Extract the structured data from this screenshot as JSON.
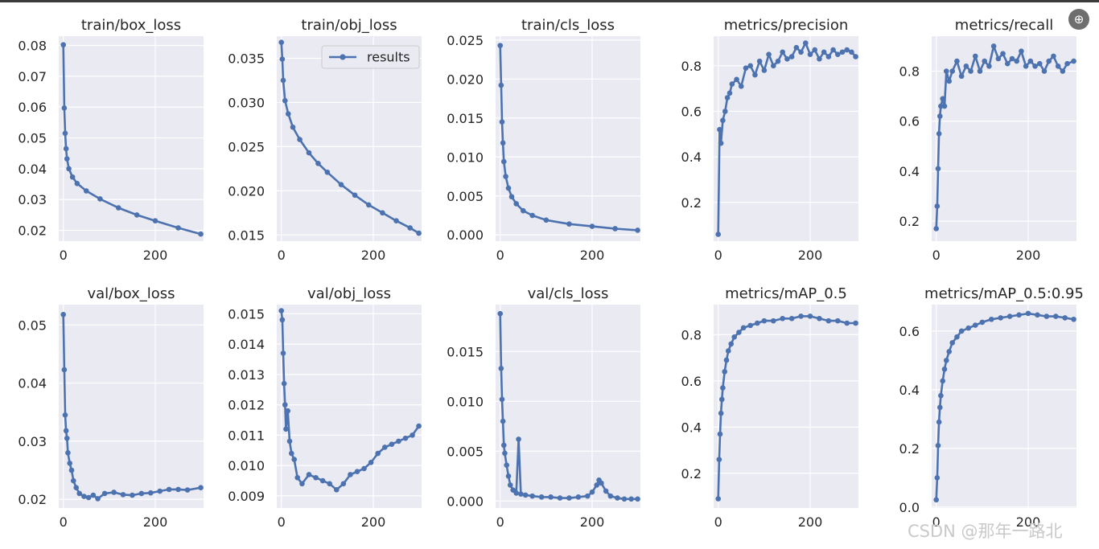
{
  "colors": {
    "panel_bg": "#eaeaf2",
    "grid": "#ffffff",
    "series": "#4c72b0",
    "text": "#262626"
  },
  "toolbar": {
    "zoom_icon": "magnifier-icon",
    "zoom_glyph": "⊕"
  },
  "watermark": "CSDN @那年一路北",
  "chart_data": [
    {
      "type": "line",
      "title": "train/box_loss",
      "xlim": [
        -10,
        305
      ],
      "ylim": [
        0.0165,
        0.083
      ],
      "xticks": [
        0,
        200
      ],
      "yticks": [
        0.02,
        0.03,
        0.04,
        0.05,
        0.06,
        0.07,
        0.08
      ],
      "ytick_labels": [
        "0.02",
        "0.03",
        "0.04",
        "0.05",
        "0.06",
        "0.07",
        "0.08"
      ],
      "series": [
        {
          "name": "results",
          "x": [
            0,
            2,
            4,
            6,
            8,
            12,
            20,
            30,
            50,
            80,
            120,
            160,
            200,
            250,
            299
          ],
          "y": [
            0.0802,
            0.0597,
            0.0515,
            0.0465,
            0.0432,
            0.04,
            0.0373,
            0.0352,
            0.0328,
            0.0302,
            0.0273,
            0.025,
            0.0231,
            0.0208,
            0.0188
          ]
        }
      ]
    },
    {
      "type": "line",
      "title": "train/obj_loss",
      "xlim": [
        -10,
        305
      ],
      "ylim": [
        0.0143,
        0.0375
      ],
      "xticks": [
        0,
        200
      ],
      "yticks": [
        0.015,
        0.02,
        0.025,
        0.03,
        0.035
      ],
      "ytick_labels": [
        "0.015",
        "0.020",
        "0.025",
        "0.030",
        "0.035"
      ],
      "legend": {
        "label": "results",
        "position": "top-right"
      },
      "series": [
        {
          "name": "results",
          "x": [
            0,
            2,
            4,
            8,
            15,
            25,
            40,
            60,
            80,
            100,
            130,
            160,
            190,
            220,
            250,
            280,
            299
          ],
          "y": [
            0.0368,
            0.0349,
            0.0325,
            0.0302,
            0.0287,
            0.0272,
            0.0258,
            0.0243,
            0.0231,
            0.0221,
            0.0207,
            0.0195,
            0.0184,
            0.0175,
            0.0166,
            0.0158,
            0.0152
          ]
        }
      ]
    },
    {
      "type": "line",
      "title": "train/cls_loss",
      "xlim": [
        -10,
        305
      ],
      "ylim": [
        -0.0008,
        0.0255
      ],
      "xticks": [
        0,
        200
      ],
      "yticks": [
        0,
        0.005,
        0.01,
        0.015,
        0.02,
        0.025
      ],
      "ytick_labels": [
        "0.000",
        "0.005",
        "0.010",
        "0.015",
        "0.020",
        "0.025"
      ],
      "series": [
        {
          "name": "results",
          "x": [
            0,
            2,
            4,
            6,
            8,
            12,
            18,
            25,
            35,
            50,
            70,
            100,
            150,
            200,
            250,
            299
          ],
          "y": [
            0.0243,
            0.0192,
            0.0145,
            0.0118,
            0.0094,
            0.0075,
            0.006,
            0.0049,
            0.004,
            0.0031,
            0.0025,
            0.0019,
            0.0014,
            0.0011,
            0.0008,
            0.0006
          ]
        }
      ]
    },
    {
      "type": "line",
      "title": "metrics/precision",
      "xlim": [
        -10,
        305
      ],
      "ylim": [
        0.03,
        0.93
      ],
      "xticks": [
        0,
        200
      ],
      "yticks": [
        0.2,
        0.4,
        0.6,
        0.8
      ],
      "ytick_labels": [
        "0.2",
        "0.4",
        "0.6",
        "0.8"
      ],
      "series": [
        {
          "name": "results",
          "x": [
            0,
            3,
            6,
            10,
            15,
            20,
            25,
            30,
            40,
            50,
            60,
            70,
            80,
            90,
            100,
            110,
            120,
            130,
            140,
            150,
            160,
            170,
            180,
            190,
            200,
            210,
            220,
            230,
            240,
            250,
            260,
            270,
            280,
            290,
            299
          ],
          "y": [
            0.06,
            0.52,
            0.46,
            0.56,
            0.6,
            0.66,
            0.68,
            0.72,
            0.74,
            0.71,
            0.79,
            0.8,
            0.76,
            0.82,
            0.78,
            0.85,
            0.8,
            0.82,
            0.86,
            0.83,
            0.84,
            0.88,
            0.86,
            0.9,
            0.85,
            0.87,
            0.83,
            0.86,
            0.84,
            0.87,
            0.85,
            0.86,
            0.87,
            0.86,
            0.84
          ]
        }
      ]
    },
    {
      "type": "line",
      "title": "metrics/recall",
      "xlim": [
        -10,
        305
      ],
      "ylim": [
        0.12,
        0.94
      ],
      "xticks": [
        0,
        200
      ],
      "yticks": [
        0.2,
        0.4,
        0.6,
        0.8
      ],
      "ytick_labels": [
        "0.2",
        "0.4",
        "0.6",
        "0.8"
      ],
      "series": [
        {
          "name": "results",
          "x": [
            0,
            2,
            4,
            6,
            8,
            10,
            14,
            18,
            22,
            28,
            35,
            45,
            55,
            65,
            75,
            85,
            95,
            105,
            115,
            125,
            135,
            145,
            155,
            165,
            175,
            185,
            195,
            205,
            215,
            225,
            235,
            245,
            255,
            265,
            275,
            285,
            299
          ],
          "y": [
            0.17,
            0.26,
            0.41,
            0.55,
            0.62,
            0.66,
            0.69,
            0.66,
            0.8,
            0.76,
            0.8,
            0.84,
            0.78,
            0.82,
            0.8,
            0.86,
            0.8,
            0.84,
            0.82,
            0.9,
            0.85,
            0.87,
            0.83,
            0.85,
            0.84,
            0.88,
            0.82,
            0.84,
            0.82,
            0.83,
            0.8,
            0.84,
            0.86,
            0.82,
            0.8,
            0.83,
            0.84
          ]
        }
      ]
    },
    {
      "type": "line",
      "title": "val/box_loss",
      "xlim": [
        -10,
        305
      ],
      "ylim": [
        0.0185,
        0.0535
      ],
      "xticks": [
        0,
        200
      ],
      "yticks": [
        0.02,
        0.03,
        0.04,
        0.05
      ],
      "ytick_labels": [
        "0.02",
        "0.03",
        "0.04",
        "0.05"
      ],
      "series": [
        {
          "name": "results",
          "x": [
            0,
            2,
            4,
            6,
            8,
            10,
            14,
            18,
            22,
            28,
            35,
            45,
            55,
            65,
            75,
            90,
            110,
            130,
            150,
            170,
            190,
            210,
            230,
            250,
            270,
            299
          ],
          "y": [
            0.0518,
            0.0423,
            0.0345,
            0.0318,
            0.0305,
            0.028,
            0.0262,
            0.025,
            0.0232,
            0.022,
            0.021,
            0.0205,
            0.0203,
            0.0207,
            0.0201,
            0.021,
            0.0212,
            0.0208,
            0.0207,
            0.021,
            0.0211,
            0.0214,
            0.0217,
            0.0217,
            0.0216,
            0.022
          ]
        }
      ]
    },
    {
      "type": "line",
      "title": "val/obj_loss",
      "xlim": [
        -10,
        305
      ],
      "ylim": [
        0.0086,
        0.0153
      ],
      "xticks": [
        0,
        200
      ],
      "yticks": [
        0.009,
        0.01,
        0.011,
        0.012,
        0.013,
        0.014,
        0.015
      ],
      "ytick_labels": [
        "0.009",
        "0.010",
        "0.011",
        "0.012",
        "0.013",
        "0.014",
        "0.015"
      ],
      "series": [
        {
          "name": "results",
          "x": [
            0,
            2,
            4,
            6,
            8,
            10,
            14,
            18,
            22,
            28,
            35,
            45,
            60,
            75,
            90,
            105,
            120,
            135,
            150,
            165,
            180,
            195,
            210,
            225,
            240,
            255,
            270,
            285,
            299
          ],
          "y": [
            0.0151,
            0.0148,
            0.0137,
            0.0127,
            0.012,
            0.0112,
            0.0118,
            0.0108,
            0.0104,
            0.0102,
            0.0096,
            0.0094,
            0.0097,
            0.0096,
            0.0095,
            0.0094,
            0.0092,
            0.0094,
            0.0097,
            0.0098,
            0.0099,
            0.0101,
            0.0104,
            0.0106,
            0.0107,
            0.0108,
            0.0109,
            0.011,
            0.0113
          ]
        }
      ]
    },
    {
      "type": "line",
      "title": "val/cls_loss",
      "xlim": [
        -10,
        305
      ],
      "ylim": [
        -0.0007,
        0.0197
      ],
      "xticks": [
        0,
        200
      ],
      "yticks": [
        0,
        0.005,
        0.01,
        0.015
      ],
      "ytick_labels": [
        "0.000",
        "0.005",
        "0.010",
        "0.015"
      ],
      "series": [
        {
          "name": "results",
          "x": [
            0,
            2,
            4,
            6,
            8,
            10,
            14,
            18,
            22,
            28,
            35,
            40,
            45,
            55,
            70,
            90,
            110,
            130,
            150,
            170,
            190,
            200,
            210,
            215,
            220,
            230,
            240,
            255,
            270,
            285,
            299
          ],
          "y": [
            0.0188,
            0.0133,
            0.0102,
            0.008,
            0.0056,
            0.0048,
            0.0036,
            0.0025,
            0.0016,
            0.0011,
            0.0008,
            0.0062,
            0.0007,
            0.0006,
            0.0005,
            0.0004,
            0.0004,
            0.0003,
            0.0003,
            0.0004,
            0.0005,
            0.0009,
            0.0016,
            0.0021,
            0.0018,
            0.001,
            0.0005,
            0.0003,
            0.0002,
            0.0002,
            0.0002
          ]
        }
      ]
    },
    {
      "type": "line",
      "title": "metrics/mAP_0.5",
      "xlim": [
        -10,
        305
      ],
      "ylim": [
        0.05,
        0.93
      ],
      "xticks": [
        0,
        200
      ],
      "yticks": [
        0.2,
        0.4,
        0.6,
        0.8
      ],
      "ytick_labels": [
        "0.2",
        "0.4",
        "0.6",
        "0.8"
      ],
      "series": [
        {
          "name": "results",
          "x": [
            0,
            2,
            4,
            6,
            8,
            10,
            14,
            18,
            22,
            28,
            35,
            45,
            55,
            70,
            85,
            100,
            120,
            140,
            160,
            180,
            200,
            220,
            240,
            260,
            280,
            299
          ],
          "y": [
            0.09,
            0.26,
            0.37,
            0.46,
            0.52,
            0.57,
            0.64,
            0.69,
            0.73,
            0.76,
            0.79,
            0.81,
            0.83,
            0.84,
            0.85,
            0.86,
            0.86,
            0.87,
            0.87,
            0.88,
            0.88,
            0.87,
            0.86,
            0.86,
            0.85,
            0.85
          ]
        }
      ]
    },
    {
      "type": "line",
      "title": "metrics/mAP_0.5:0.95",
      "xlim": [
        -10,
        305
      ],
      "ylim": [
        -0.003,
        0.69
      ],
      "xticks": [
        0,
        200
      ],
      "yticks": [
        0,
        0.2,
        0.4,
        0.6
      ],
      "ytick_labels": [
        "0.0",
        "0.2",
        "0.4",
        "0.6"
      ],
      "series": [
        {
          "name": "results",
          "x": [
            0,
            2,
            4,
            6,
            8,
            10,
            14,
            18,
            22,
            28,
            35,
            45,
            55,
            70,
            85,
            100,
            120,
            140,
            160,
            180,
            200,
            220,
            240,
            260,
            280,
            299
          ],
          "y": [
            0.025,
            0.1,
            0.21,
            0.29,
            0.34,
            0.38,
            0.43,
            0.47,
            0.5,
            0.53,
            0.56,
            0.58,
            0.6,
            0.61,
            0.62,
            0.63,
            0.64,
            0.645,
            0.65,
            0.655,
            0.66,
            0.655,
            0.65,
            0.65,
            0.645,
            0.64
          ]
        }
      ]
    }
  ]
}
